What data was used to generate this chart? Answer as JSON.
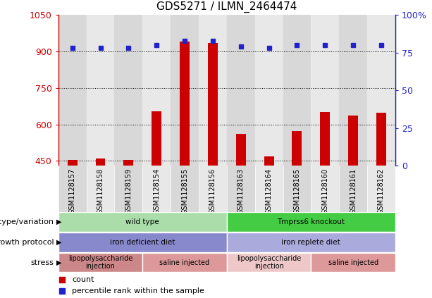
{
  "title": "GDS5271 / ILMN_2464474",
  "samples": [
    "GSM1128157",
    "GSM1128158",
    "GSM1128159",
    "GSM1128154",
    "GSM1128155",
    "GSM1128156",
    "GSM1128163",
    "GSM1128164",
    "GSM1128165",
    "GSM1128160",
    "GSM1128161",
    "GSM1128162"
  ],
  "counts": [
    455,
    460,
    453,
    655,
    940,
    935,
    560,
    468,
    572,
    650,
    635,
    648
  ],
  "percentiles": [
    78,
    78,
    78,
    80,
    83,
    83,
    79,
    78,
    80,
    80,
    80,
    80
  ],
  "ylim_left": [
    430,
    1050
  ],
  "ylim_right": [
    0,
    100
  ],
  "yticks_left": [
    450,
    600,
    750,
    900,
    1050
  ],
  "yticks_right": [
    0,
    25,
    50,
    75,
    100
  ],
  "bar_color": "#cc0000",
  "dot_color": "#2222cc",
  "col_colors": [
    "#d8d8d8",
    "#e8e8e8"
  ],
  "annotation_rows": [
    {
      "label": "genotype/variation",
      "segments": [
        {
          "text": "wild type",
          "start": 0,
          "end": 6,
          "color": "#aaddaa"
        },
        {
          "text": "Tmprss6 knockout",
          "start": 6,
          "end": 12,
          "color": "#44cc44"
        }
      ]
    },
    {
      "label": "growth protocol",
      "segments": [
        {
          "text": "iron deficient diet",
          "start": 0,
          "end": 6,
          "color": "#8888cc"
        },
        {
          "text": "iron replete diet",
          "start": 6,
          "end": 12,
          "color": "#aaaadd"
        }
      ]
    },
    {
      "label": "stress",
      "segments": [
        {
          "text": "lipopolysaccharide\ninjection",
          "start": 0,
          "end": 3,
          "color": "#cc8888"
        },
        {
          "text": "saline injected",
          "start": 3,
          "end": 6,
          "color": "#dd9999"
        },
        {
          "text": "lipopolysaccharide\ninjection",
          "start": 6,
          "end": 9,
          "color": "#eec8c8"
        },
        {
          "text": "saline injected",
          "start": 9,
          "end": 12,
          "color": "#dd9999"
        }
      ]
    }
  ],
  "legend": [
    {
      "color": "#cc0000",
      "label": "count"
    },
    {
      "color": "#2222cc",
      "label": "percentile rank within the sample"
    }
  ]
}
